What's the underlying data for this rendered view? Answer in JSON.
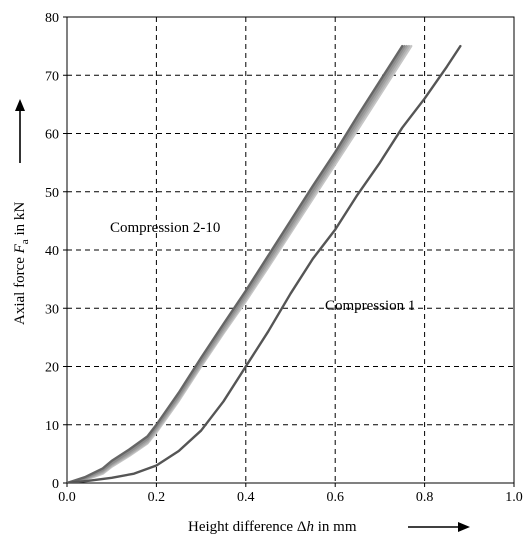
{
  "chart_data": {
    "type": "line",
    "title": "",
    "xlabel": {
      "prefix": "Height difference Δ",
      "italic": "h",
      "suffix": " in mm"
    },
    "ylabel": {
      "prefix": "Axial force ",
      "italic": "F",
      "sub": "a",
      "suffix": " in kN"
    },
    "xlim": [
      0.0,
      1.0
    ],
    "ylim": [
      0,
      80
    ],
    "xticks": [
      "0.0",
      "0.2",
      "0.4",
      "0.6",
      "0.8",
      "1.0"
    ],
    "yticks": [
      "0",
      "10",
      "20",
      "30",
      "40",
      "50",
      "60",
      "70",
      "80"
    ],
    "grid": "dashed",
    "annotations": [
      {
        "text": "Compression 2-10",
        "x": 0.1,
        "y": 43
      },
      {
        "text": "Compression 1",
        "x": 0.58,
        "y": 30
      }
    ],
    "series": [
      {
        "group": "Compression 1",
        "color": "#555555",
        "x": [
          0.0,
          0.05,
          0.1,
          0.15,
          0.2,
          0.25,
          0.3,
          0.35,
          0.4,
          0.45,
          0.5,
          0.55,
          0.6,
          0.65,
          0.7,
          0.75,
          0.8,
          0.85,
          0.88
        ],
        "y": [
          0,
          0.4,
          0.9,
          1.6,
          3.0,
          5.5,
          9.0,
          14.0,
          20.0,
          26.0,
          32.5,
          38.5,
          43.5,
          49.5,
          55.0,
          61.0,
          66.0,
          71.5,
          75.0
        ]
      },
      {
        "group": "Compression 2-10",
        "color": "#666666",
        "x": [
          0.0,
          0.04,
          0.08,
          0.1,
          0.14,
          0.18,
          0.2,
          0.25,
          0.3,
          0.35,
          0.4,
          0.45,
          0.5,
          0.55,
          0.6,
          0.65,
          0.7,
          0.75
        ],
        "y": [
          0,
          1.0,
          2.5,
          3.8,
          5.8,
          8.0,
          10.0,
          15.5,
          21.5,
          27.3,
          33.0,
          39.0,
          45.0,
          51.0,
          56.8,
          63.0,
          69.0,
          75.0
        ]
      },
      {
        "group": "Compression 2-10",
        "color": "#8c8c8c",
        "x": [
          0.0,
          0.04,
          0.08,
          0.1,
          0.14,
          0.18,
          0.2,
          0.25,
          0.3,
          0.35,
          0.4,
          0.45,
          0.5,
          0.55,
          0.6,
          0.65,
          0.7,
          0.755
        ],
        "y": [
          0,
          0.8,
          2.2,
          3.4,
          5.4,
          7.6,
          9.6,
          15.0,
          21.0,
          26.8,
          32.5,
          38.4,
          44.3,
          50.3,
          56.2,
          62.3,
          68.3,
          75.0
        ]
      },
      {
        "group": "Compression 2-10",
        "color": "#a0a0a0",
        "x": [
          0.0,
          0.04,
          0.08,
          0.1,
          0.14,
          0.18,
          0.2,
          0.25,
          0.3,
          0.35,
          0.4,
          0.45,
          0.5,
          0.55,
          0.6,
          0.65,
          0.7,
          0.76
        ],
        "y": [
          0,
          0.7,
          2.0,
          3.2,
          5.1,
          7.3,
          9.3,
          14.7,
          20.6,
          26.4,
          32.0,
          37.9,
          43.8,
          49.8,
          55.7,
          61.7,
          67.7,
          75.0
        ]
      },
      {
        "group": "Compression 2-10",
        "color": "#b3b3b3",
        "x": [
          0.0,
          0.04,
          0.08,
          0.1,
          0.14,
          0.18,
          0.2,
          0.25,
          0.3,
          0.35,
          0.4,
          0.45,
          0.5,
          0.55,
          0.6,
          0.65,
          0.7,
          0.765
        ],
        "y": [
          0,
          0.6,
          1.8,
          3.0,
          4.9,
          7.0,
          9.0,
          14.4,
          20.3,
          26.0,
          31.6,
          37.4,
          43.3,
          49.3,
          55.2,
          61.2,
          67.1,
          75.0
        ]
      },
      {
        "group": "Compression 2-10",
        "color": "#c6c6c6",
        "x": [
          0.0,
          0.04,
          0.08,
          0.1,
          0.14,
          0.18,
          0.2,
          0.25,
          0.3,
          0.35,
          0.4,
          0.45,
          0.5,
          0.55,
          0.6,
          0.65,
          0.7,
          0.77
        ],
        "y": [
          0,
          0.5,
          1.6,
          2.8,
          4.7,
          6.8,
          8.7,
          14.1,
          20.0,
          25.7,
          31.2,
          37.0,
          42.9,
          48.8,
          54.7,
          60.6,
          66.6,
          75.0
        ]
      }
    ]
  }
}
